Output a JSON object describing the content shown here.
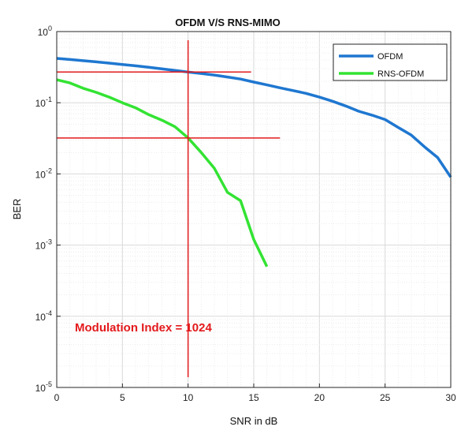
{
  "chart_data": {
    "type": "line",
    "title": "OFDM V/S RNS-MIMO",
    "xlabel": "SNR in dB",
    "ylabel": "BER",
    "xlim": [
      0,
      30
    ],
    "ylim": [
      1e-05,
      1
    ],
    "yscale": "log",
    "grid": true,
    "legend_position": "top-right",
    "x_ticks": [
      "0",
      "5",
      "10",
      "15",
      "20",
      "25",
      "30"
    ],
    "x_tick_values": [
      0,
      5,
      10,
      15,
      20,
      25,
      30
    ],
    "y_tick_values": [
      1,
      0.1,
      0.01,
      0.001,
      0.0001,
      1e-05
    ],
    "y_tick_labels": [
      {
        "base": "10",
        "exp": "0"
      },
      {
        "base": "10",
        "exp": "-1"
      },
      {
        "base": "10",
        "exp": "-2"
      },
      {
        "base": "10",
        "exp": "-3"
      },
      {
        "base": "10",
        "exp": "-4"
      },
      {
        "base": "10",
        "exp": "-5"
      }
    ],
    "series": [
      {
        "name": "OFDM",
        "color": "#1f77d0",
        "x": [
          0,
          1,
          2,
          3,
          4,
          5,
          6,
          7,
          8,
          9,
          10,
          11,
          12,
          13,
          14,
          15,
          16,
          17,
          18,
          19,
          20,
          21,
          22,
          23,
          24,
          25,
          26,
          27,
          28,
          29,
          30
        ],
        "y": [
          0.42,
          0.405,
          0.39,
          0.375,
          0.36,
          0.345,
          0.33,
          0.315,
          0.3,
          0.285,
          0.27,
          0.258,
          0.245,
          0.23,
          0.215,
          0.195,
          0.178,
          0.162,
          0.148,
          0.135,
          0.12,
          0.105,
          0.09,
          0.076,
          0.067,
          0.058,
          0.045,
          0.035,
          0.024,
          0.017,
          0.009
        ]
      },
      {
        "name": "RNS-OFDM",
        "color": "#33e333",
        "x": [
          0,
          1,
          2,
          3,
          4,
          5,
          6,
          7,
          8,
          9,
          10,
          11,
          12,
          13,
          14,
          15,
          16
        ],
        "y": [
          0.21,
          0.19,
          0.16,
          0.14,
          0.12,
          0.1,
          0.085,
          0.068,
          0.057,
          0.046,
          0.032,
          0.02,
          0.012,
          0.0055,
          0.0042,
          0.0012,
          0.0005
        ]
      }
    ],
    "annotations": {
      "text": "Modulation Index = 1024",
      "color": "#e31a1c",
      "vline_x": 10,
      "hlines": [
        {
          "y": 0.27,
          "x_from": 0,
          "x_to": 14.8
        },
        {
          "y": 0.032,
          "x_from": 0,
          "x_to": 17
        }
      ]
    }
  }
}
